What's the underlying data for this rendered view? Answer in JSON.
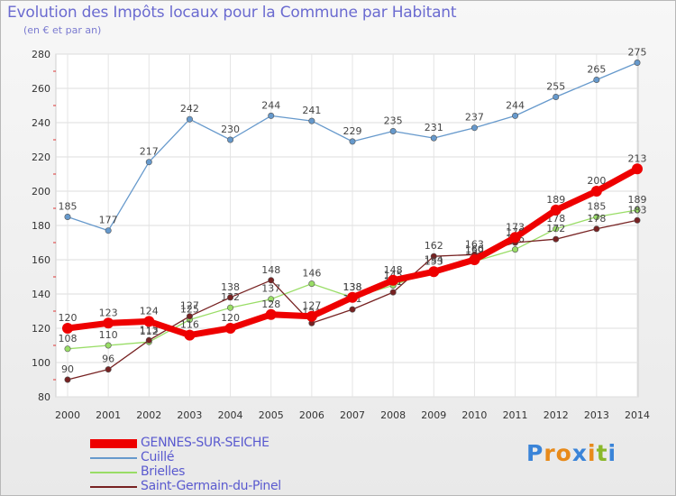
{
  "title": "Evolution des Impôts locaux pour la Commune par Habitant",
  "subtitle": "(en € et par an)",
  "chart_data": {
    "type": "line",
    "title": "Evolution des Impôts locaux pour la Commune par Habitant",
    "subtitle": "(en € et par an)",
    "xlabel": "",
    "ylabel": "",
    "x": [
      "2000",
      "2001",
      "2002",
      "2003",
      "2004",
      "2005",
      "2006",
      "2007",
      "2008",
      "2009",
      "2010",
      "2011",
      "2012",
      "2013",
      "2014"
    ],
    "ylim": [
      80,
      280
    ],
    "yticks": [
      80,
      100,
      120,
      140,
      160,
      180,
      200,
      220,
      240,
      260,
      280
    ],
    "grid": true,
    "legend_position": "bottom-left",
    "series": [
      {
        "name": "GENNES-SUR-SEICHE",
        "color": "#ee0000",
        "bold": true,
        "values": [
          120,
          123,
          124,
          116,
          120,
          128,
          127,
          138,
          148,
          153,
          160,
          173,
          189,
          200,
          213
        ]
      },
      {
        "name": "Cuillé",
        "color": "#6699cc",
        "bold": false,
        "values": [
          185,
          177,
          217,
          242,
          230,
          244,
          241,
          229,
          235,
          231,
          237,
          244,
          255,
          265,
          275
        ]
      },
      {
        "name": "Brielles",
        "color": "#99dd66",
        "bold": false,
        "values": [
          108,
          110,
          112,
          125,
          132,
          137,
          146,
          138,
          145,
          154,
          159,
          166,
          178,
          185,
          189
        ]
      },
      {
        "name": "Saint-Germain-du-Pinel",
        "color": "#772222",
        "bold": false,
        "values": [
          90,
          96,
          113,
          127,
          138,
          148,
          123,
          131,
          141,
          162,
          163,
          170,
          172,
          178,
          183
        ]
      }
    ]
  },
  "logo": {
    "letters": [
      "P",
      "r",
      "o",
      "x",
      "i",
      "t",
      "i"
    ],
    "colors": [
      "#3a84d8",
      "#e88a1a",
      "#e88a1a",
      "#3a84d8",
      "#e88a1a",
      "#8ab82a",
      "#3a84d8"
    ]
  }
}
